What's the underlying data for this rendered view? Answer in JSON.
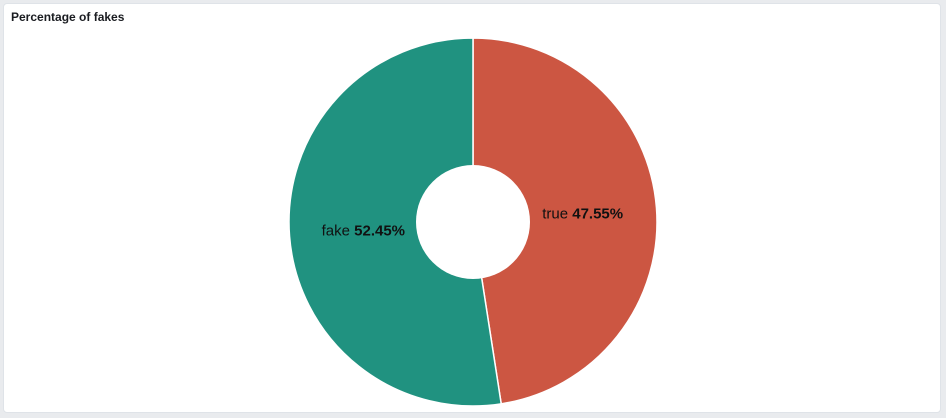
{
  "panel": {
    "title": "Percentage of fakes"
  },
  "chart_data": {
    "type": "pie",
    "donut": true,
    "title": "Percentage of fakes",
    "slices": [
      {
        "label": "true",
        "percent": 47.55,
        "percent_label": "47.55%",
        "color": "#cc5642"
      },
      {
        "label": "fake",
        "percent": 52.45,
        "percent_label": "52.45%",
        "color": "#209280"
      }
    ],
    "legend": "none"
  }
}
